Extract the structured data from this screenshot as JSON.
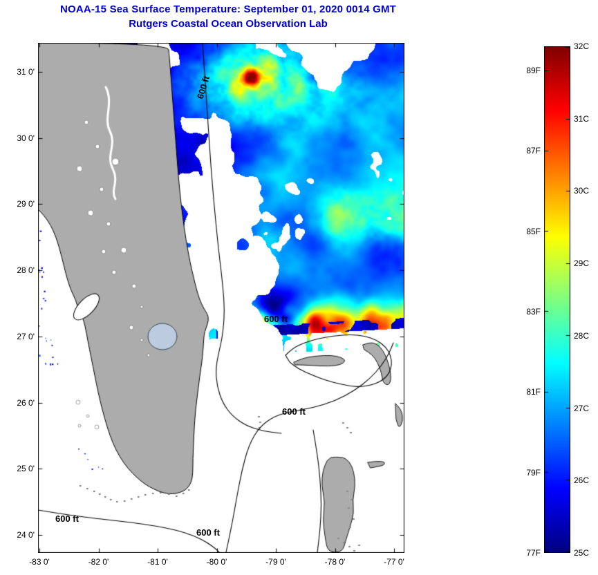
{
  "title": "NOAA-15 Sea Surface Temperature:  September 01, 2020 0014 GMT",
  "subtitle": "Rutgers Coastal Ocean Observation Lab",
  "theme": {
    "title_color": "#0000CC",
    "land_color": "#ACACAC",
    "lake_okeechobee_color": "#BCCCDE",
    "contour_color": "#000000",
    "no_data_color": "#FFFFFF",
    "axis_text_color": "#000000"
  },
  "map": {
    "x_ticks": [
      "-83 0'",
      "-82 0'",
      "-81 0'",
      "-80 0'",
      "-79 0'",
      "-78 0'",
      "-77 0'"
    ],
    "y_ticks": [
      "31 0'",
      "30 0'",
      "29 0'",
      "28 0'",
      "27 0'",
      "26 0'",
      "25 0'",
      "24 0'"
    ],
    "contour_labels": [
      {
        "text": "600 ft"
      },
      {
        "text": "600 ft"
      },
      {
        "text": "600 ft"
      },
      {
        "text": "600 ft"
      },
      {
        "text": "600 ft"
      }
    ]
  },
  "colorbar": {
    "celsius_labels": [
      "32C",
      "31C",
      "30C",
      "29C",
      "28C",
      "27C",
      "26C",
      "25C"
    ],
    "fahrenheit_labels": [
      "89F",
      "87F",
      "85F",
      "83F",
      "81F",
      "79F",
      "77F"
    ],
    "min_c": 25,
    "max_c": 32,
    "colormap": "jet"
  },
  "chart_data": {
    "type": "heatmap",
    "title": "NOAA-15 Sea Surface Temperature: September 01, 2020 0014 GMT",
    "subtitle": "Rutgers Coastal Ocean Observation Lab",
    "variable": "sea surface temperature",
    "satellite": "NOAA-15",
    "timestamp_shown": "September 01, 2020 0014 GMT",
    "units": [
      "C",
      "F"
    ],
    "colormap": "jet",
    "scale": {
      "celsius_ticks": [
        32,
        31,
        30,
        29,
        28,
        27,
        26,
        25
      ],
      "fahrenheit_ticks": [
        89,
        87,
        85,
        83,
        81,
        79,
        77
      ],
      "min_c": 25,
      "max_c": 32
    },
    "x_axis": {
      "label": "longitude",
      "ticks_deg": [
        -83,
        -82,
        -81,
        -80,
        -79,
        -78,
        -77
      ]
    },
    "y_axis": {
      "label": "latitude",
      "ticks_deg": [
        31,
        30,
        29,
        28,
        27,
        26,
        25,
        24
      ]
    },
    "bathymetry_contour": "600 ft",
    "features": [
      "Florida peninsula and Bahamas shown as gray land",
      "white areas are clouds / no satellite retrieval",
      "mottled 25-29C water north and east of Florida",
      "warm 29-31C band near 27.2N at the southern edge of the satellite swath",
      "Lake Okeechobee visible in southern Florida",
      "600 ft bathymetry contours along the shelf edge and Bahama banks"
    ]
  }
}
